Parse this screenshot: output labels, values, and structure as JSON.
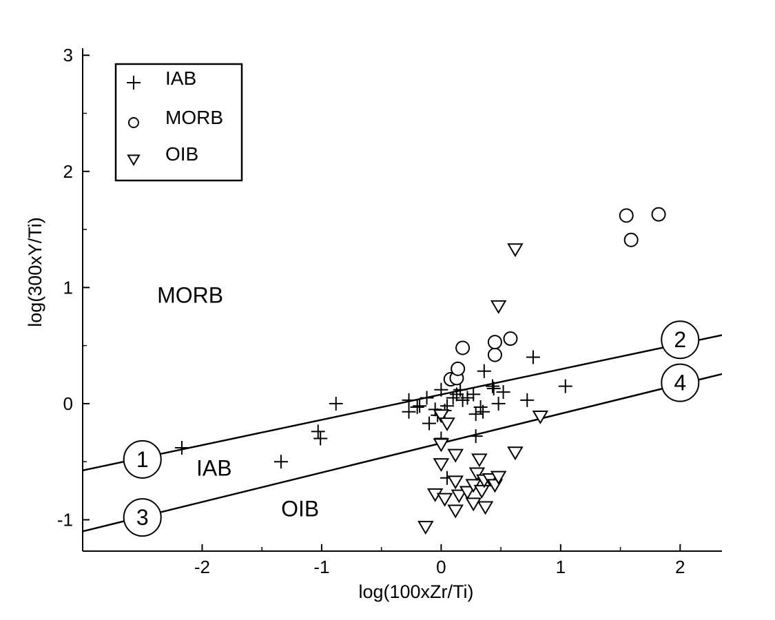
{
  "chart_data": {
    "type": "scatter",
    "xlabel": "log(100xZr/Ti)",
    "ylabel": "log(300xY/Ti)",
    "xlim": [
      -3.0,
      2.35
    ],
    "ylim": [
      -1.27,
      3.12
    ],
    "x_ticks": [
      -2,
      -1,
      0,
      1,
      2
    ],
    "x_tick_labels": [
      "-2",
      "-1",
      "0",
      "1",
      "2"
    ],
    "x_minor_ticks": [
      -1.5,
      -0.5,
      0.5,
      1.5
    ],
    "y_ticks": [
      -1,
      0,
      1,
      2,
      3
    ],
    "y_tick_labels": [
      "-1",
      "0",
      "1",
      "2",
      "3"
    ],
    "y_minor_ticks": [
      -0.5,
      0.5,
      1.5,
      2.5
    ],
    "legend": {
      "position": "top-left",
      "entries": [
        {
          "label": "IAB",
          "marker": "plus"
        },
        {
          "label": "MORB",
          "marker": "circle"
        },
        {
          "label": "OIB",
          "marker": "triangle-down"
        }
      ]
    },
    "regions": [
      {
        "label": "MORB",
        "x": -2.1,
        "y": 0.87
      },
      {
        "label": "IAB",
        "x": -1.9,
        "y": -0.62
      },
      {
        "label": "OIB",
        "x": -1.18,
        "y": -0.97
      }
    ],
    "boundary_lines": [
      {
        "name": "upper",
        "x": [
          -3.0,
          2.35
        ],
        "y": [
          -0.575,
          0.59
        ],
        "labels": [
          {
            "text": "1",
            "x": -2.5,
            "y": -0.48
          },
          {
            "text": "2",
            "x": 2.0,
            "y": 0.55
          }
        ]
      },
      {
        "name": "lower",
        "x": [
          -3.0,
          2.35
        ],
        "y": [
          -1.1,
          0.255
        ],
        "labels": [
          {
            "text": "3",
            "x": -2.5,
            "y": -0.98
          },
          {
            "text": "4",
            "x": 2.0,
            "y": 0.18
          }
        ]
      }
    ],
    "series": [
      {
        "name": "IAB",
        "marker": "plus",
        "points": [
          [
            -2.17,
            -0.38
          ],
          [
            -1.34,
            -0.5
          ],
          [
            -1.03,
            -0.24
          ],
          [
            -1.01,
            -0.3
          ],
          [
            -0.88,
            0.0
          ],
          [
            -0.27,
            0.03
          ],
          [
            -0.27,
            -0.07
          ],
          [
            -0.2,
            -0.03
          ],
          [
            -0.18,
            -0.02
          ],
          [
            -0.12,
            0.05
          ],
          [
            -0.1,
            -0.17
          ],
          [
            -0.05,
            -0.05
          ],
          [
            -0.03,
            -0.1
          ],
          [
            0.0,
            0.12
          ],
          [
            0.0,
            -0.3
          ],
          [
            0.03,
            -0.06
          ],
          [
            0.05,
            -0.02
          ],
          [
            0.05,
            -0.64
          ],
          [
            0.1,
            0.05
          ],
          [
            0.13,
            0.08
          ],
          [
            0.16,
            0.12
          ],
          [
            0.18,
            0.03
          ],
          [
            0.22,
            0.05
          ],
          [
            0.27,
            0.08
          ],
          [
            0.29,
            -0.09
          ],
          [
            0.29,
            -0.28
          ],
          [
            0.33,
            -0.03
          ],
          [
            0.35,
            -0.07
          ],
          [
            0.36,
            0.28
          ],
          [
            0.43,
            0.15
          ],
          [
            0.44,
            0.13
          ],
          [
            0.48,
            0.0
          ],
          [
            0.52,
            0.1
          ],
          [
            0.72,
            0.03
          ],
          [
            0.77,
            0.4
          ],
          [
            1.04,
            0.15
          ]
        ]
      },
      {
        "name": "MORB",
        "marker": "circle",
        "points": [
          [
            0.08,
            0.21
          ],
          [
            0.13,
            0.22
          ],
          [
            0.14,
            0.3
          ],
          [
            0.18,
            0.48
          ],
          [
            0.45,
            0.42
          ],
          [
            0.45,
            0.53
          ],
          [
            0.58,
            0.56
          ],
          [
            1.55,
            1.62
          ],
          [
            1.59,
            1.41
          ],
          [
            1.82,
            1.63
          ]
        ]
      },
      {
        "name": "OIB",
        "marker": "triangle-down",
        "points": [
          [
            -0.13,
            -1.06
          ],
          [
            -0.05,
            -0.78
          ],
          [
            0.0,
            -0.1
          ],
          [
            0.0,
            -0.35
          ],
          [
            0.0,
            -0.52
          ],
          [
            0.03,
            -0.82
          ],
          [
            0.05,
            -0.17
          ],
          [
            0.12,
            -0.44
          ],
          [
            0.12,
            -0.67
          ],
          [
            0.12,
            -0.92
          ],
          [
            0.15,
            -0.79
          ],
          [
            0.22,
            -0.76
          ],
          [
            0.27,
            -0.7
          ],
          [
            0.27,
            -0.86
          ],
          [
            0.3,
            -0.6
          ],
          [
            0.32,
            -0.48
          ],
          [
            0.34,
            -0.75
          ],
          [
            0.36,
            -0.66
          ],
          [
            0.37,
            -0.89
          ],
          [
            0.41,
            -0.65
          ],
          [
            0.45,
            -0.7
          ],
          [
            0.48,
            -0.63
          ],
          [
            0.48,
            0.84
          ],
          [
            0.62,
            1.33
          ],
          [
            0.62,
            -0.42
          ],
          [
            0.83,
            -0.11
          ]
        ]
      }
    ]
  }
}
